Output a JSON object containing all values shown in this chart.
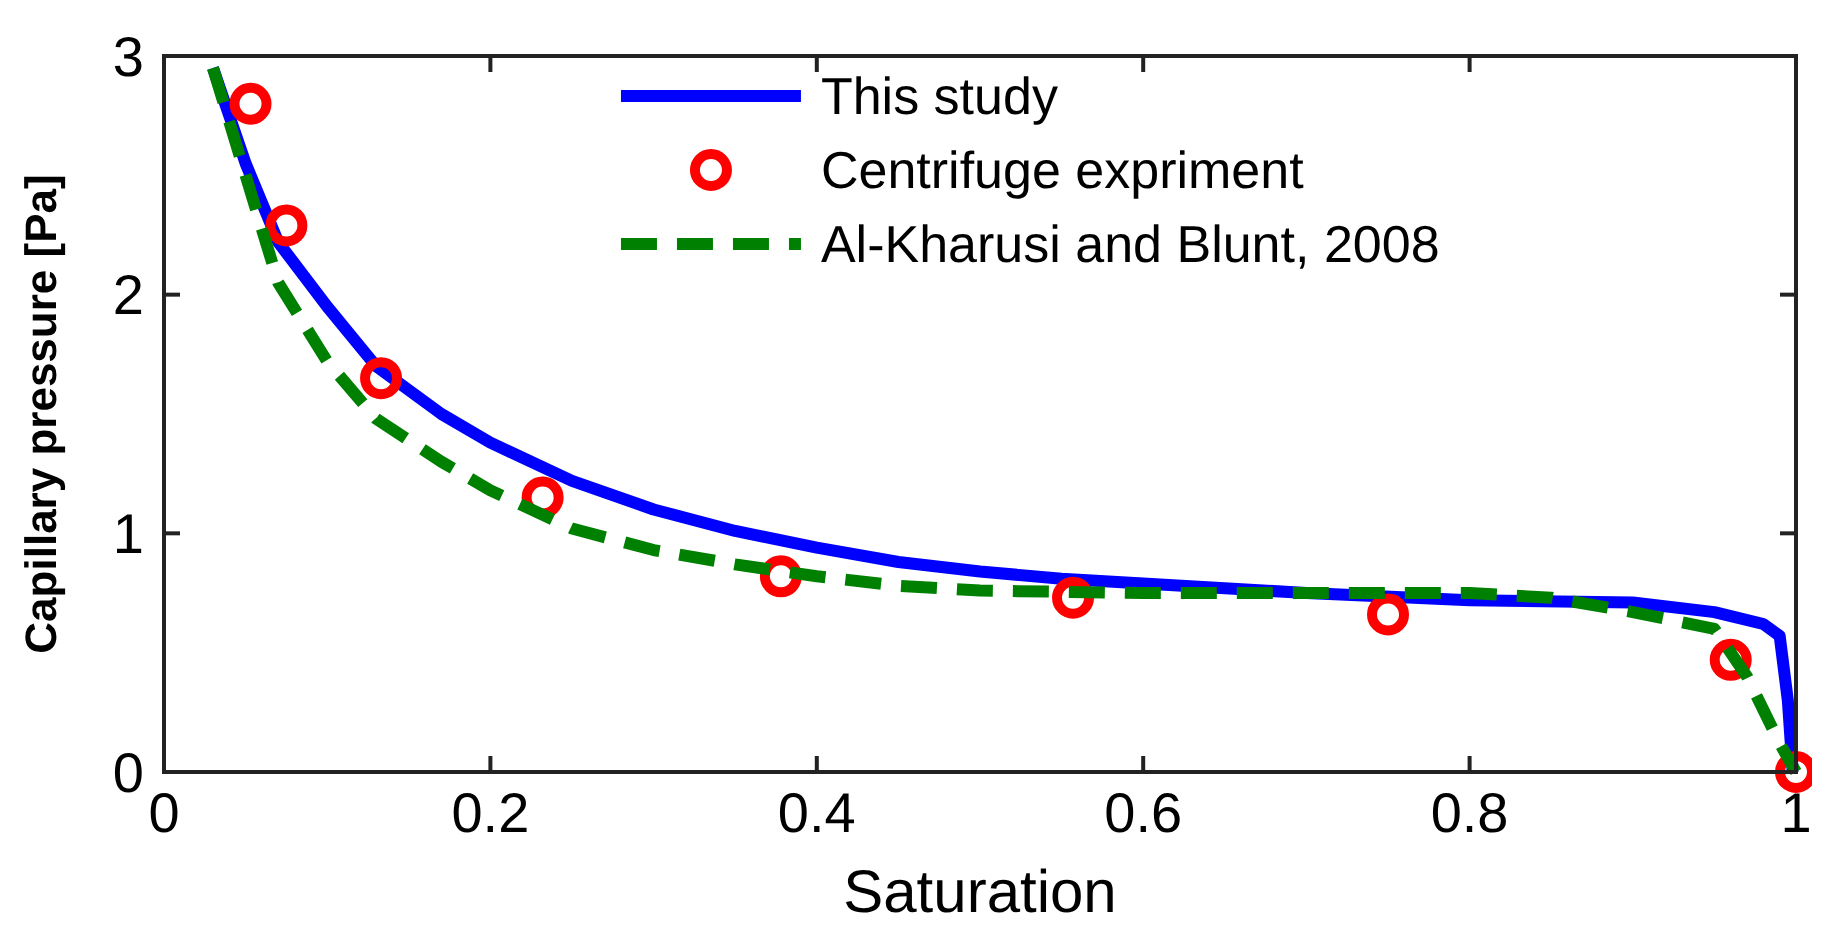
{
  "chart_data": {
    "type": "line",
    "xlabel": "Saturation",
    "ylabel": "Capillary pressure [Pa]",
    "xlim": [
      0,
      1
    ],
    "ylim": [
      0,
      3
    ],
    "xticks": [
      0,
      0.2,
      0.4,
      0.6,
      0.8,
      1
    ],
    "yticks": [
      0,
      1,
      2,
      3
    ],
    "grid": false,
    "legend": "top right",
    "series": [
      {
        "name": "This study",
        "color": "#0000ff",
        "line_style": "solid",
        "marker": "none",
        "x": [
          0.03,
          0.05,
          0.07,
          0.1,
          0.13,
          0.17,
          0.2,
          0.25,
          0.3,
          0.35,
          0.4,
          0.45,
          0.5,
          0.55,
          0.6,
          0.7,
          0.8,
          0.9,
          0.95,
          0.98,
          0.99,
          0.995,
          0.998
        ],
        "values": [
          2.95,
          2.55,
          2.22,
          1.95,
          1.7,
          1.5,
          1.38,
          1.22,
          1.1,
          1.01,
          0.94,
          0.88,
          0.84,
          0.81,
          0.79,
          0.75,
          0.72,
          0.71,
          0.67,
          0.62,
          0.57,
          0.3,
          0
        ]
      },
      {
        "name": "Centrifuge expriment",
        "color": "#ff0000",
        "type": "scatter",
        "marker": "circle",
        "x": [
          0.053,
          0.075,
          0.133,
          0.232,
          0.378,
          0.557,
          0.75,
          0.96,
          1.0
        ],
        "values": [
          2.8,
          2.29,
          1.65,
          1.15,
          0.82,
          0.73,
          0.66,
          0.47,
          0
        ]
      },
      {
        "name": "Al-Kharusi and Blunt, 2008",
        "color": "#008000",
        "line_style": "dashed",
        "marker": "none",
        "x": [
          0.03,
          0.05,
          0.07,
          0.1,
          0.13,
          0.17,
          0.2,
          0.25,
          0.3,
          0.35,
          0.4,
          0.45,
          0.5,
          0.6,
          0.7,
          0.8,
          0.85,
          0.9,
          0.95,
          0.97,
          0.99,
          1.0
        ],
        "values": [
          2.95,
          2.5,
          2.05,
          1.72,
          1.48,
          1.3,
          1.18,
          1.02,
          0.93,
          0.87,
          0.82,
          0.78,
          0.76,
          0.75,
          0.75,
          0.75,
          0.73,
          0.67,
          0.6,
          0.4,
          0.12,
          0
        ]
      }
    ]
  }
}
